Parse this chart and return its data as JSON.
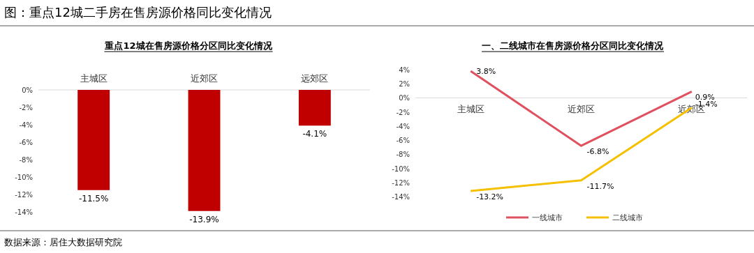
{
  "chart_data": [
    {
      "type": "bar",
      "title": "图：重点12城二手房在售房源价格同比变化情况",
      "subtitle": "重点12城在售房源价格分区同比变化情况",
      "categories": [
        "主城区",
        "近郊区",
        "远郊区"
      ],
      "values": [
        -11.5,
        -13.9,
        -4.1
      ],
      "value_labels": [
        "-11.5%",
        "-13.9%",
        "-4.1%"
      ],
      "color": "#c00000",
      "ylim": [
        -14,
        0
      ],
      "yticks": [
        {
          "value": 0,
          "label": "0%"
        },
        {
          "value": -2,
          "label": "-2%"
        },
        {
          "value": -4,
          "label": "-4%"
        },
        {
          "value": -6,
          "label": "-6%"
        },
        {
          "value": -8,
          "label": "-8%"
        },
        {
          "value": -10,
          "label": "-10%"
        },
        {
          "value": -12,
          "label": "-12%"
        },
        {
          "value": -14,
          "label": "-14%"
        }
      ],
      "annotations": [
        "数据来源：居住大数据研究院"
      ]
    },
    {
      "type": "line",
      "subtitle": "一、二线城市在售房源价格分区同比变化情况",
      "categories": [
        "主城区",
        "近郊区",
        "近郊区"
      ],
      "legend": "bottom",
      "ylim": [
        -14,
        4
      ],
      "yticks": [
        {
          "value": 4,
          "label": "4%"
        },
        {
          "value": 2,
          "label": "2%"
        },
        {
          "value": 0,
          "label": "0%"
        },
        {
          "value": -2,
          "label": "-2%"
        },
        {
          "value": -4,
          "label": "-4%"
        },
        {
          "value": -6,
          "label": "-6%"
        },
        {
          "value": -8,
          "label": "-8%"
        },
        {
          "value": -10,
          "label": "-10%"
        },
        {
          "value": -12,
          "label": "-12%"
        },
        {
          "value": -14,
          "label": "-14%"
        }
      ],
      "series": [
        {
          "name": "一线城市",
          "color": "#e0505f",
          "values": [
            3.8,
            -6.8,
            0.9
          ],
          "value_labels": [
            "3.8%",
            "-6.8%",
            "0.9%"
          ]
        },
        {
          "name": "二线城市",
          "color": "#f5c000",
          "values": [
            -13.2,
            -11.7,
            -1.4
          ],
          "value_labels": [
            "-13.2%",
            "-11.7%",
            "-1.4%"
          ]
        }
      ]
    }
  ]
}
